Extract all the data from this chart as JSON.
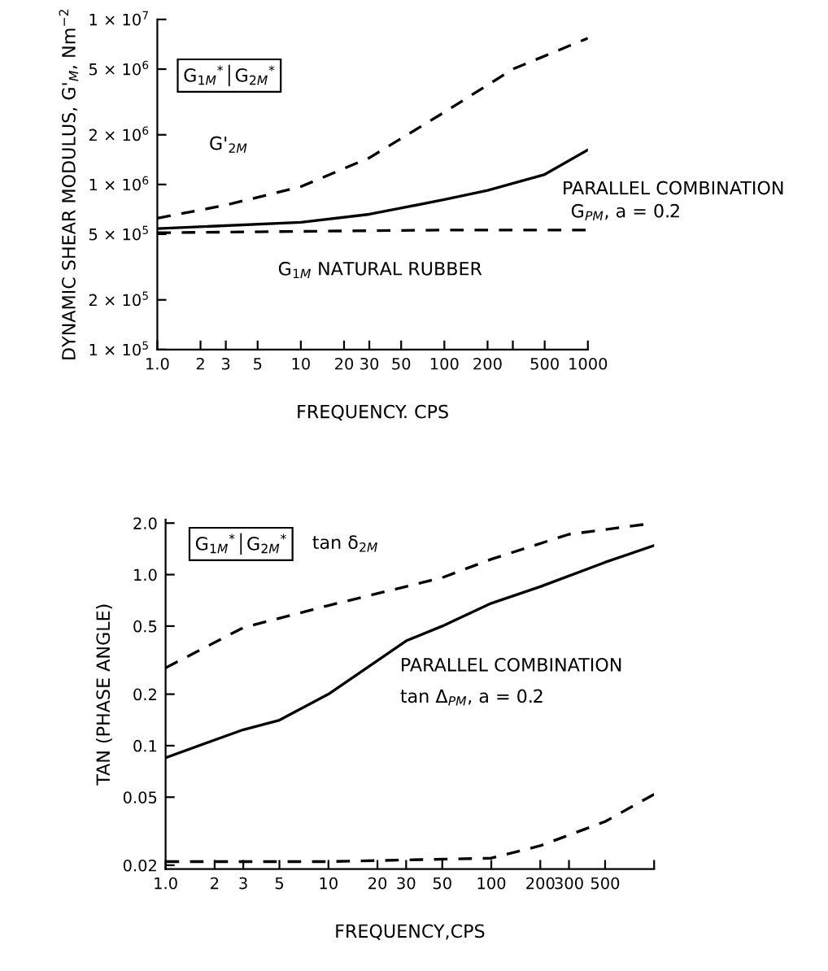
{
  "chart_data": [
    {
      "type": "line",
      "xlabel": "FREQUENCY. CPS",
      "ylabel": "DYNAMIC SHEAR MODULUS, G'$_{M}$, Nm$^{−2}$",
      "log": "xy",
      "grid": false,
      "legend": false,
      "marker": "none",
      "xlim": [
        1,
        1000
      ],
      "ylim": [
        100000,
        10000000
      ],
      "xticks": [
        {
          "value": 1,
          "label": "1.0"
        },
        2,
        3,
        5,
        10,
        20,
        30,
        50,
        100,
        200,
        {
          "value": 300,
          "label": null
        },
        500,
        1000
      ],
      "yticks": [
        {
          "value": 100000,
          "label": "1 × 10$^{5}$"
        },
        {
          "value": 200000,
          "label": "2 × 10$^{5}$"
        },
        {
          "value": 500000,
          "label": "5 × 10$^{5}$"
        },
        {
          "value": 1000000,
          "label": "1 × 10$^{6}$"
        },
        {
          "value": 2000000,
          "label": "2 × 10$^{6}$"
        },
        {
          "value": 5000000,
          "label": "5 × 10$^{6}$"
        },
        {
          "value": 10000000,
          "label": "1 × 10$^{7}$"
        }
      ],
      "annotations": [
        "G$_{1M}$$^{*}$│G$_{2M}$$^{*}$",
        "G'$_{2M}$",
        "PARALLEL COMBINATION",
        "G$_{PM}$, a = 0.2",
        "G$_{1M}$ NATURAL RUBBER"
      ],
      "series": [
        {
          "color": "#000000",
          "line_style": "dashed",
          "x": [
            1,
            3,
            10,
            30,
            100,
            300,
            1000
          ],
          "values": [
            625000,
            750000,
            970000,
            1450000,
            2740000,
            5000000,
            7700000
          ]
        },
        {
          "color": "#000000",
          "line_style": "solid",
          "x": [
            1,
            10,
            30,
            100,
            200,
            500,
            1000
          ],
          "values": [
            540000,
            590000,
            660000,
            810000,
            920000,
            1150000,
            1620000
          ]
        },
        {
          "color": "#000000",
          "line_style": "dashed",
          "x": [
            1,
            10,
            100,
            1000
          ],
          "values": [
            510000,
            520000,
            530000,
            530000
          ]
        }
      ]
    },
    {
      "type": "line",
      "xlabel": "FREQUENCY,CPS",
      "ylabel": "TAN (PHASE ANGLE)",
      "log": "xy",
      "grid": false,
      "legend": false,
      "marker": "none",
      "xlim": [
        1,
        1000
      ],
      "ylim": [
        0.019,
        2.1
      ],
      "xticks": [
        {
          "value": 1,
          "label": "1.0"
        },
        2,
        3,
        5,
        10,
        20,
        30,
        50,
        100,
        200,
        300,
        500,
        {
          "value": 1000,
          "label": null
        }
      ],
      "yticks": [
        {
          "value": 0.02,
          "label": "0.02"
        },
        {
          "value": 0.05,
          "label": "0.05"
        },
        {
          "value": 0.1,
          "label": "0.1"
        },
        {
          "value": 0.2,
          "label": "0.2"
        },
        {
          "value": 0.5,
          "label": "0.5"
        },
        {
          "value": 1,
          "label": "1.0"
        },
        {
          "value": 2,
          "label": "2.0"
        }
      ],
      "annotations": [
        "G$_{1M}$$^{*}$│G$_{2M}$$^{*}$",
        "tan δ$_{2M}$",
        "PARALLEL COMBINATION",
        "tan Δ$_{PM}$, a = 0.2"
      ],
      "series": [
        {
          "color": "#000000",
          "line_style": "dashed",
          "x": [
            1,
            3,
            10,
            50,
            100,
            300,
            1000
          ],
          "values": [
            0.285,
            0.49,
            0.66,
            0.96,
            1.23,
            1.72,
            2.0
          ]
        },
        {
          "color": "#000000",
          "line_style": "solid",
          "x": [
            1,
            3,
            5,
            10,
            30,
            50,
            100,
            200,
            500,
            1000
          ],
          "values": [
            0.085,
            0.124,
            0.141,
            0.2,
            0.41,
            0.5,
            0.68,
            0.85,
            1.18,
            1.48
          ]
        },
        {
          "color": "#000000",
          "line_style": "dashed",
          "x": [
            1,
            10,
            100,
            200,
            500,
            1000
          ],
          "values": [
            0.021,
            0.021,
            0.022,
            0.026,
            0.036,
            0.052
          ]
        }
      ]
    }
  ]
}
